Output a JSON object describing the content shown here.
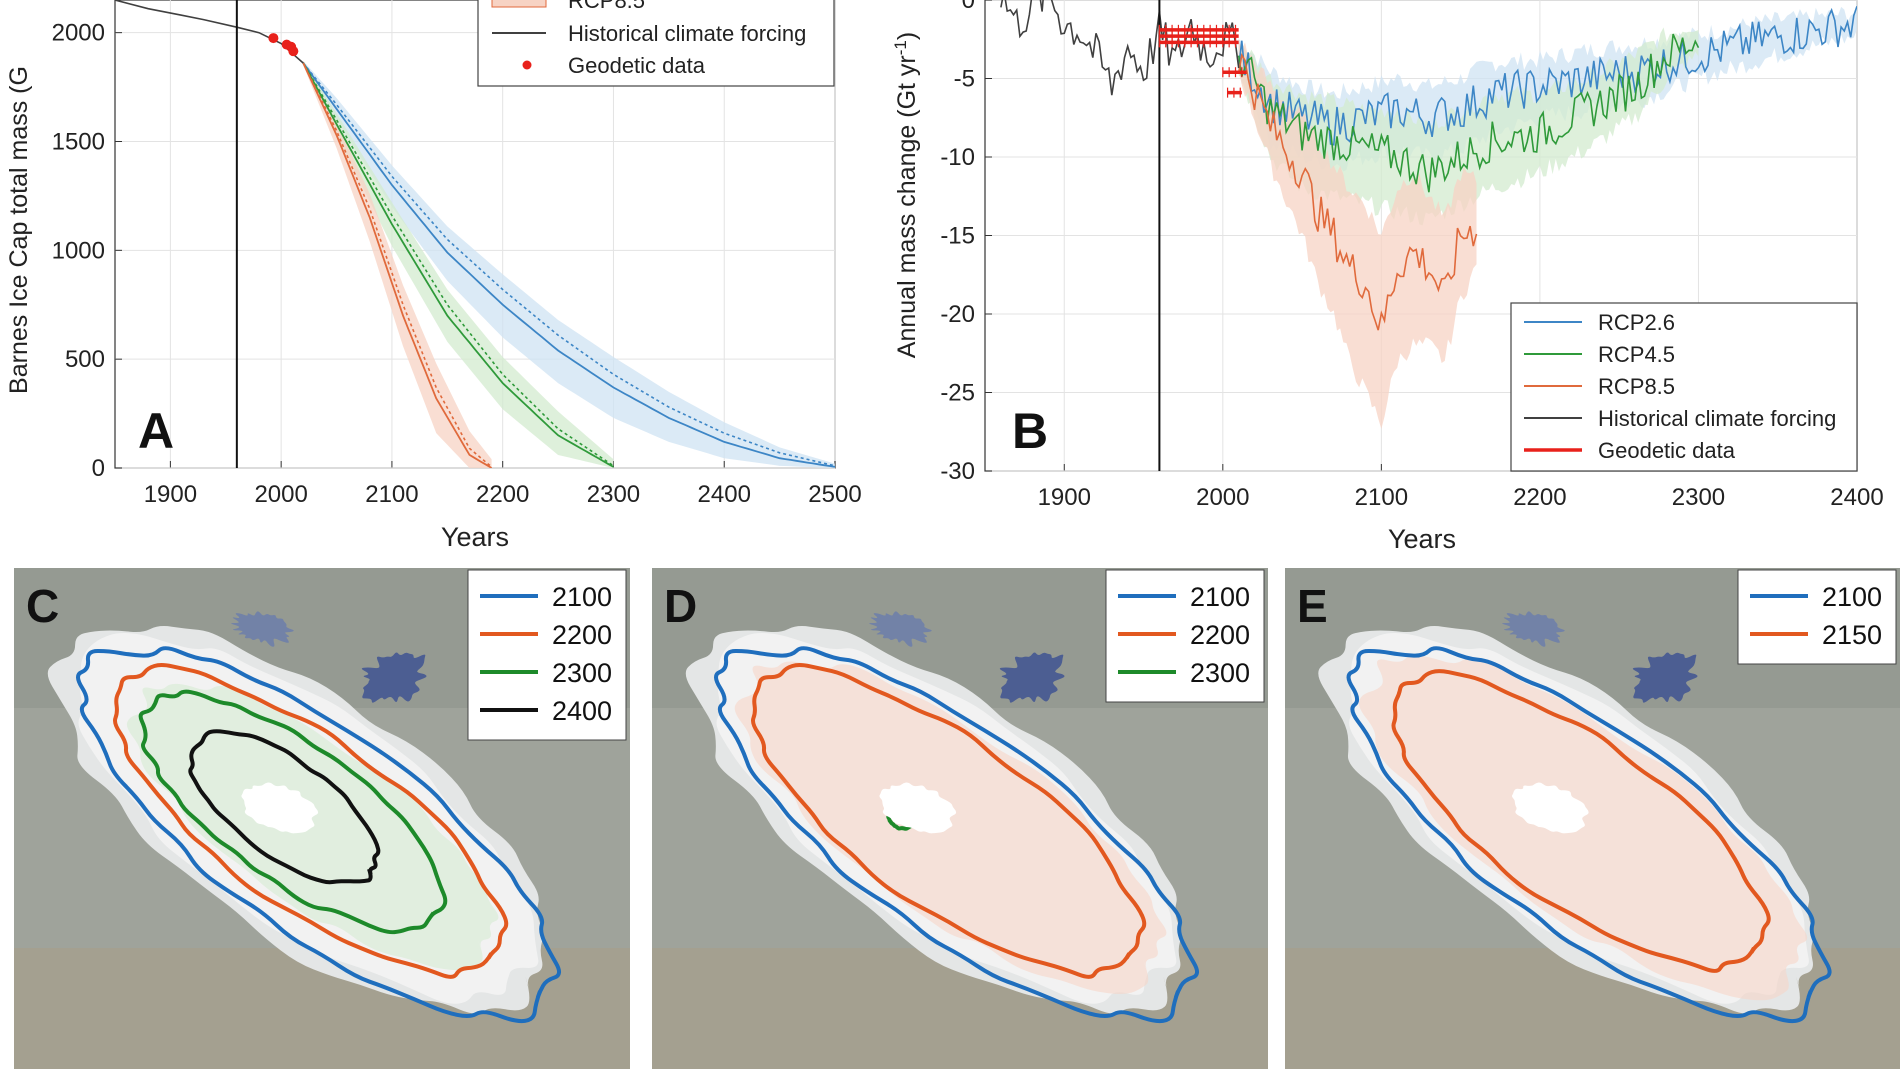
{
  "figure": {
    "colors": {
      "rcp26": "#3d86c6",
      "rcp45": "#2f9a3a",
      "rcp85": "#e06a3c",
      "historical": "#404040",
      "geodetic": "#e8211b",
      "fan26": "#cfe3f3",
      "fan45": "#d3ebcf",
      "fan85": "#f7d3c4",
      "contour_2100": "#1f6ebd",
      "contour_2200": "#e2581f",
      "contour_2300": "#1d8a2a",
      "contour_2400": "#111111",
      "ice": "#f2f2f2",
      "terrain": "#9fa39b",
      "lake": "#35b9d3"
    }
  },
  "chart_data": [
    {
      "panel": "A",
      "type": "line",
      "ylabel": "Barnes Ice Cap total mass (G",
      "xlabel": "Years",
      "xlim": [
        1850,
        2500
      ],
      "ylim": [
        0,
        2150
      ],
      "xticks": [
        1900,
        2000,
        2100,
        2200,
        2300,
        2400,
        2500
      ],
      "yticks": [
        0,
        500,
        1000,
        1500,
        2000
      ],
      "grid": true,
      "legend_position": "top-right",
      "legend": [
        {
          "label": "RCP8.5",
          "style": "fan",
          "color": "rcp85"
        },
        {
          "label": "Historical climate forcing",
          "style": "line",
          "color": "historical"
        },
        {
          "label": "Geodetic data",
          "style": "dot",
          "color": "geodetic"
        }
      ],
      "vline": 1960,
      "historical": {
        "x": [
          1850,
          1880,
          1910,
          1930,
          1960,
          1980,
          2000,
          2010,
          2020
        ],
        "y": [
          2150,
          2110,
          2080,
          2060,
          2025,
          2000,
          1950,
          1905,
          1860
        ]
      },
      "geodetic": {
        "x": [
          1993,
          2005,
          2009,
          2011
        ],
        "y": [
          1975,
          1945,
          1935,
          1915
        ]
      },
      "series": [
        {
          "name": "RCP2.6",
          "color": "rcp26",
          "fan": "fan26",
          "x": [
            2020,
            2050,
            2100,
            2150,
            2200,
            2250,
            2300,
            2350,
            2400,
            2450,
            2500
          ],
          "y": [
            1860,
            1650,
            1300,
            990,
            750,
            540,
            370,
            230,
            120,
            45,
            5
          ],
          "lower": [
            1850,
            1600,
            1200,
            860,
            600,
            390,
            230,
            120,
            45,
            10,
            0
          ],
          "upper": [
            1870,
            1700,
            1390,
            1110,
            890,
            680,
            510,
            350,
            210,
            95,
            20
          ],
          "dotted": [
            1860,
            1670,
            1340,
            1050,
            820,
            610,
            430,
            280,
            160,
            70,
            10
          ]
        },
        {
          "name": "RCP4.5",
          "color": "rcp45",
          "fan": "fan45",
          "x": [
            2020,
            2050,
            2100,
            2150,
            2200,
            2250,
            2300
          ],
          "y": [
            1860,
            1580,
            1120,
            700,
            390,
            150,
            5
          ],
          "lower": [
            1850,
            1530,
            1020,
            580,
            270,
            60,
            0
          ],
          "upper": [
            1870,
            1630,
            1220,
            820,
            510,
            260,
            40
          ],
          "dotted": [
            1860,
            1600,
            1160,
            750,
            430,
            180,
            10
          ]
        },
        {
          "name": "RCP8.5",
          "color": "rcp85",
          "fan": "fan85",
          "x": [
            2020,
            2050,
            2080,
            2110,
            2140,
            2170,
            2190
          ],
          "y": [
            1860,
            1530,
            1150,
            700,
            320,
            60,
            0
          ],
          "lower": [
            1850,
            1470,
            1040,
            560,
            160,
            0,
            0
          ],
          "upper": [
            1870,
            1590,
            1260,
            840,
            480,
            170,
            40
          ],
          "dotted": [
            1860,
            1550,
            1190,
            750,
            370,
            90,
            5
          ]
        }
      ]
    },
    {
      "panel": "B",
      "type": "line",
      "ylabel": "Annual mass change (Gt yr",
      "ylabel_superscript": "-1",
      "ylabel_close": ")",
      "xlabel": "Years",
      "xlim": [
        1850,
        2400
      ],
      "ylim": [
        -30,
        0
      ],
      "xticks": [
        1900,
        2000,
        2100,
        2200,
        2300,
        2400
      ],
      "yticks": [
        0,
        -5,
        -10,
        -15,
        -20,
        -25,
        -30
      ],
      "grid": true,
      "legend_position": "bottom-right",
      "legend": [
        {
          "label": "RCP2.6",
          "color": "rcp26"
        },
        {
          "label": "RCP4.5",
          "color": "rcp45"
        },
        {
          "label": "RCP8.5",
          "color": "rcp85"
        },
        {
          "label": "Historical climate forcing",
          "color": "historical"
        },
        {
          "label": "Geodetic data",
          "color": "geodetic"
        }
      ],
      "vline": 1960,
      "historical": {
        "x": [
          1860,
          1870,
          1880,
          1890,
          1900,
          1910,
          1920,
          1930,
          1940,
          1950,
          1960,
          1970,
          1980,
          1990,
          2000,
          2010
        ],
        "y": [
          0.5,
          -1.5,
          -0.5,
          0.5,
          -1.5,
          -2.0,
          -3.5,
          -5.5,
          -3.0,
          -4.5,
          -2.0,
          -4.0,
          -1.5,
          -3.5,
          -2.5,
          -3.0
        ]
      },
      "geodetic_segments": [
        {
          "x0": 1960,
          "x1": 2010,
          "y": -1.9
        },
        {
          "x0": 1960,
          "x1": 2010,
          "y": -2.3
        },
        {
          "x0": 1960,
          "x1": 2010,
          "y": -2.7
        },
        {
          "x0": 2000,
          "x1": 2015,
          "y": -4.6
        },
        {
          "x0": 2003,
          "x1": 2012,
          "y": -5.9
        }
      ],
      "series": [
        {
          "name": "RCP2.6",
          "color": "rcp26",
          "fan": "fan26",
          "x": [
            2010,
            2030,
            2050,
            2070,
            2090,
            2110,
            2130,
            2150,
            2170,
            2200,
            2230,
            2260,
            2300,
            2340,
            2370,
            2400
          ],
          "y": [
            -3.5,
            -6.5,
            -7.5,
            -8.0,
            -7.5,
            -7.0,
            -7.5,
            -7.0,
            -6.0,
            -5.5,
            -5.0,
            -4.5,
            -3.5,
            -2.5,
            -2.0,
            -1.5
          ],
          "lower": [
            -4.5,
            -9.0,
            -10.0,
            -10.5,
            -10.0,
            -9.5,
            -10.0,
            -9.5,
            -8.5,
            -7.5,
            -7.0,
            -6.5,
            -5.0,
            -3.8,
            -3.0,
            -2.3
          ],
          "upper": [
            -2.5,
            -4.5,
            -5.5,
            -6.0,
            -5.5,
            -5.0,
            -5.5,
            -5.0,
            -4.0,
            -3.8,
            -3.2,
            -2.8,
            -2.2,
            -1.4,
            -1.1,
            -0.8
          ]
        },
        {
          "name": "RCP4.5",
          "color": "rcp45",
          "fan": "fan45",
          "x": [
            2010,
            2030,
            2050,
            2070,
            2090,
            2110,
            2130,
            2150,
            2170,
            2200,
            2230,
            2260,
            2280,
            2300
          ],
          "y": [
            -3.5,
            -7.0,
            -8.5,
            -9.0,
            -9.5,
            -10.0,
            -11.0,
            -10.0,
            -9.0,
            -8.5,
            -7.0,
            -5.5,
            -3.5,
            -2.5
          ],
          "lower": [
            -4.5,
            -10.0,
            -12.0,
            -12.5,
            -13.0,
            -13.5,
            -14.0,
            -13.0,
            -12.0,
            -11.0,
            -9.5,
            -7.5,
            -5.0,
            -3.5
          ],
          "upper": [
            -2.5,
            -5.0,
            -6.0,
            -6.5,
            -7.0,
            -7.0,
            -8.0,
            -7.0,
            -6.0,
            -6.0,
            -5.0,
            -3.5,
            -2.2,
            -1.5
          ]
        },
        {
          "name": "RCP8.5",
          "color": "rcp85",
          "fan": "fan85",
          "x": [
            2010,
            2030,
            2050,
            2060,
            2070,
            2080,
            2090,
            2100,
            2110,
            2120,
            2130,
            2140,
            2150,
            2160
          ],
          "y": [
            -3.5,
            -8.0,
            -11.0,
            -13.5,
            -15.0,
            -17.0,
            -18.0,
            -21.0,
            -17.0,
            -16.0,
            -17.0,
            -19.0,
            -15.0,
            -14.5
          ],
          "lower": [
            -4.5,
            -10.5,
            -15.0,
            -18.0,
            -20.0,
            -23.0,
            -25.0,
            -27.0,
            -23.0,
            -22.0,
            -22.0,
            -23.0,
            -19.0,
            -17.0
          ],
          "upper": [
            -2.5,
            -5.5,
            -7.5,
            -9.0,
            -10.5,
            -12.0,
            -13.0,
            -15.0,
            -12.0,
            -11.0,
            -12.5,
            -14.0,
            -11.0,
            -11.5
          ]
        }
      ]
    }
  ],
  "panels": {
    "a": {
      "letter": "A"
    },
    "b": {
      "letter": "B"
    },
    "c": {
      "letter": "C",
      "legend": [
        {
          "label": "2100",
          "color": "contour_2100"
        },
        {
          "label": "2200",
          "color": "contour_2200"
        },
        {
          "label": "2300",
          "color": "contour_2300"
        },
        {
          "label": "2400",
          "color": "contour_2400"
        }
      ]
    },
    "d": {
      "letter": "D",
      "legend": [
        {
          "label": "2100",
          "color": "contour_2100"
        },
        {
          "label": "2200",
          "color": "contour_2200"
        },
        {
          "label": "2300",
          "color": "contour_2300"
        }
      ]
    },
    "e": {
      "letter": "E",
      "legend": [
        {
          "label": "2100",
          "color": "contour_2100"
        },
        {
          "label": "2150",
          "color": "contour_2200"
        }
      ]
    }
  }
}
